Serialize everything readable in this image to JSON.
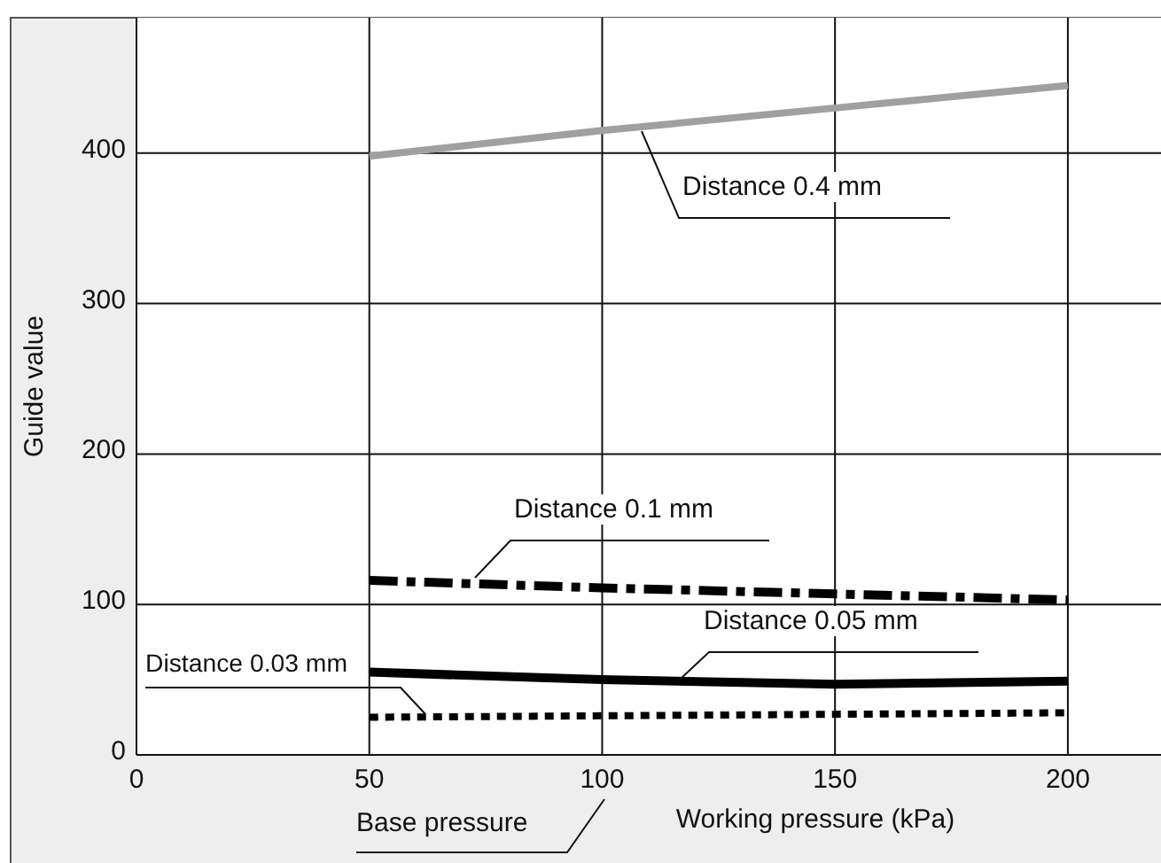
{
  "chart_data": {
    "type": "line",
    "xlabel": "Working pressure (kPa)",
    "ylabel": "Guide value",
    "x": [
      50,
      100,
      150,
      200
    ],
    "xlim": [
      0,
      220
    ],
    "xticks": [
      0,
      50,
      100,
      150,
      200
    ],
    "ylim": [
      0,
      490
    ],
    "yticks": [
      0,
      100,
      200,
      300,
      400
    ],
    "grid": true,
    "series": [
      {
        "name": "Distance 0.4 mm",
        "color": "#a0a0a0",
        "line_style": "solid",
        "values": [
          398,
          415,
          430,
          445
        ]
      },
      {
        "name": "Distance 0.1 mm",
        "color": "#000000",
        "line_style": "dashdot",
        "values": [
          116,
          111,
          107,
          103
        ]
      },
      {
        "name": "Distance 0.05 mm",
        "color": "#000000",
        "line_style": "solid",
        "values": [
          55,
          50,
          47,
          49
        ]
      },
      {
        "name": "Distance 0.03 mm",
        "color": "#000000",
        "line_style": "dotted",
        "values": [
          25,
          26,
          27,
          28
        ]
      }
    ],
    "annotations": [
      "Base pressure"
    ]
  }
}
